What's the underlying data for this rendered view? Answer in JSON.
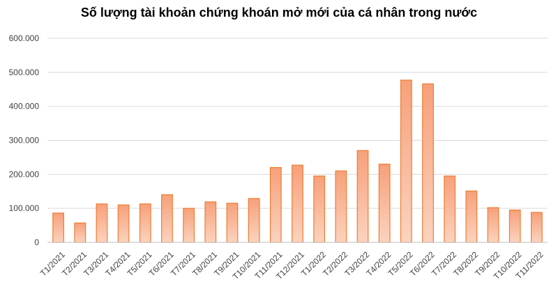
{
  "chart_data": {
    "type": "bar",
    "title": "Số lượng tài khoản chứng khoán mở mới của cá nhân trong nước",
    "xlabel": "",
    "ylabel": "",
    "categories": [
      "T1/2021",
      "T2/2021",
      "T3/2021",
      "T4/2021",
      "T5/2021",
      "T6/2021",
      "T7/2021",
      "T8/2021",
      "T9/2021",
      "T10/2021",
      "T11/2021",
      "T12/2021",
      "T1/2022",
      "T2/2022",
      "T3/2022",
      "T4/2022",
      "T5/2022",
      "T6/2022",
      "T7/2022",
      "T8/2022",
      "T9/2022",
      "T10/2022",
      "T11/2022"
    ],
    "values": [
      86000,
      57000,
      113000,
      110000,
      113000,
      140000,
      100000,
      119000,
      115000,
      129000,
      220000,
      227000,
      195000,
      210000,
      270000,
      230000,
      477000,
      466000,
      195000,
      151000,
      102000,
      95000,
      88000
    ],
    "ylim": [
      0,
      600000
    ],
    "y_ticks": [
      0,
      100000,
      200000,
      300000,
      400000,
      500000,
      600000
    ],
    "y_tick_labels": [
      "0",
      "100.000",
      "200.000",
      "300.000",
      "400.000",
      "500.000",
      "600.000"
    ],
    "grid": true,
    "legend": "none",
    "colors": {
      "bar_fill_top": "#f7a07a",
      "bar_fill_bottom": "#fbd3bf",
      "bar_stroke": "#ed7d31",
      "grid": "#d9d9d9",
      "axis": "#bfbfbf"
    }
  }
}
